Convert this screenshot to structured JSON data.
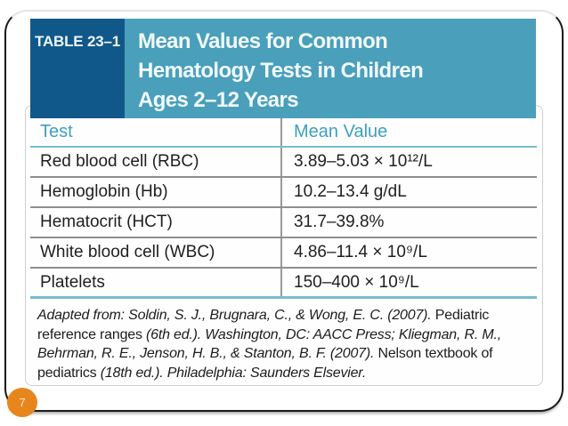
{
  "colors": {
    "header_dark": "#11588A",
    "header_teal": "#4A9FBB",
    "accent_teal": "#3E9FC0",
    "rule_teal": "#79BCCB",
    "rule_gray": "#8f8f8f",
    "badge_orange": "#E8861E"
  },
  "header": {
    "table_label": "TABLE 23–1",
    "title_lines": [
      "Mean Values for Common",
      "Hematology Tests in Children",
      "Ages 2–12 Years"
    ]
  },
  "table": {
    "columns": [
      "Test",
      "Mean Value"
    ],
    "rows": [
      {
        "test": "Red blood cell (RBC)",
        "mean_value": "3.89–5.03 × 10¹²/L"
      },
      {
        "test": "Hemoglobin (Hb)",
        "mean_value": "10.2–13.4 g/dL"
      },
      {
        "test": "Hematocrit (HCT)",
        "mean_value": "31.7–39.8%"
      },
      {
        "test": "White blood cell (WBC)",
        "mean_value": "4.86–11.4 × 10⁹/L"
      },
      {
        "test": "Platelets",
        "mean_value": "150–400 × 10⁹/L"
      }
    ]
  },
  "citation": {
    "segments": [
      {
        "style": "italic",
        "text": "Adapted from: Soldin, S. J., Brugnara, C., & Wong, E. C. (2007). "
      },
      {
        "style": "roman",
        "text": "Pediatric reference ranges "
      },
      {
        "style": "italic",
        "text": "(6th ed.). Washington, DC: AACC Press; Kliegman, R. M., Behrman, R. E., Jenson, H. B., & Stanton, B. F. (2007). "
      },
      {
        "style": "roman",
        "text": "Nelson textbook of pediatrics "
      },
      {
        "style": "italic",
        "text": "(18th ed.). Philadelphia: Saunders Elsevier."
      }
    ]
  },
  "footer": {
    "page_number": "7"
  }
}
